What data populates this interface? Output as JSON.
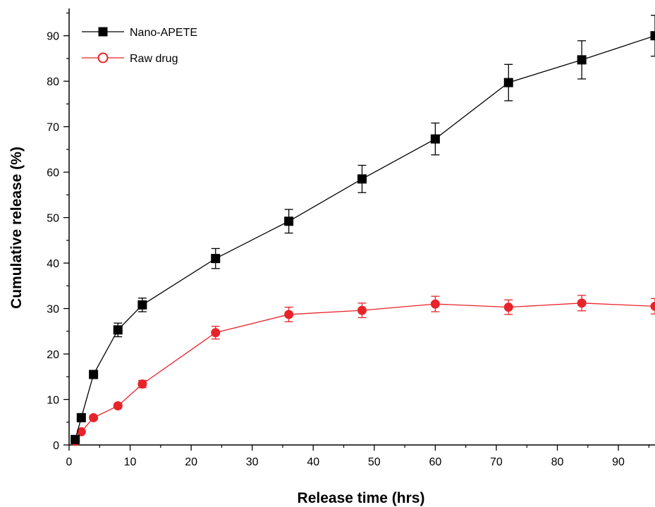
{
  "chart_data": {
    "type": "line",
    "title": "",
    "xlabel": "Release time (hrs)",
    "ylabel": "Cumulative release (%)",
    "xlim": [
      0,
      96
    ],
    "ylim": [
      0,
      96
    ],
    "x_ticks": [
      0,
      10,
      20,
      30,
      40,
      50,
      60,
      70,
      80,
      90
    ],
    "y_ticks": [
      0,
      10,
      20,
      30,
      40,
      50,
      60,
      70,
      80,
      90
    ],
    "grid": false,
    "legend": "top-left",
    "series": [
      {
        "name": "Nano-APETE",
        "color": "#000000",
        "marker": "square",
        "x": [
          1,
          2,
          4,
          8,
          12,
          24,
          36,
          48,
          60,
          72,
          84,
          96
        ],
        "y": [
          1.2,
          6.0,
          15.5,
          25.3,
          30.8,
          41.0,
          49.2,
          58.5,
          67.3,
          79.7,
          84.7,
          90.0
        ],
        "error": [
          0.3,
          0.5,
          0.6,
          1.5,
          1.5,
          2.2,
          2.6,
          3.0,
          3.5,
          4.0,
          4.2,
          4.5
        ]
      },
      {
        "name": "Raw drug",
        "color": "#e8232a",
        "marker": "circle",
        "x": [
          1,
          2,
          4,
          8,
          12,
          24,
          36,
          48,
          60,
          72,
          84,
          96
        ],
        "y": [
          0.8,
          2.9,
          6.0,
          8.6,
          13.4,
          24.7,
          28.7,
          29.6,
          31.0,
          30.3,
          31.2,
          30.5
        ],
        "error": [
          0.2,
          0.3,
          0.4,
          0.5,
          0.8,
          1.4,
          1.6,
          1.6,
          1.7,
          1.6,
          1.7,
          1.7
        ]
      }
    ]
  }
}
